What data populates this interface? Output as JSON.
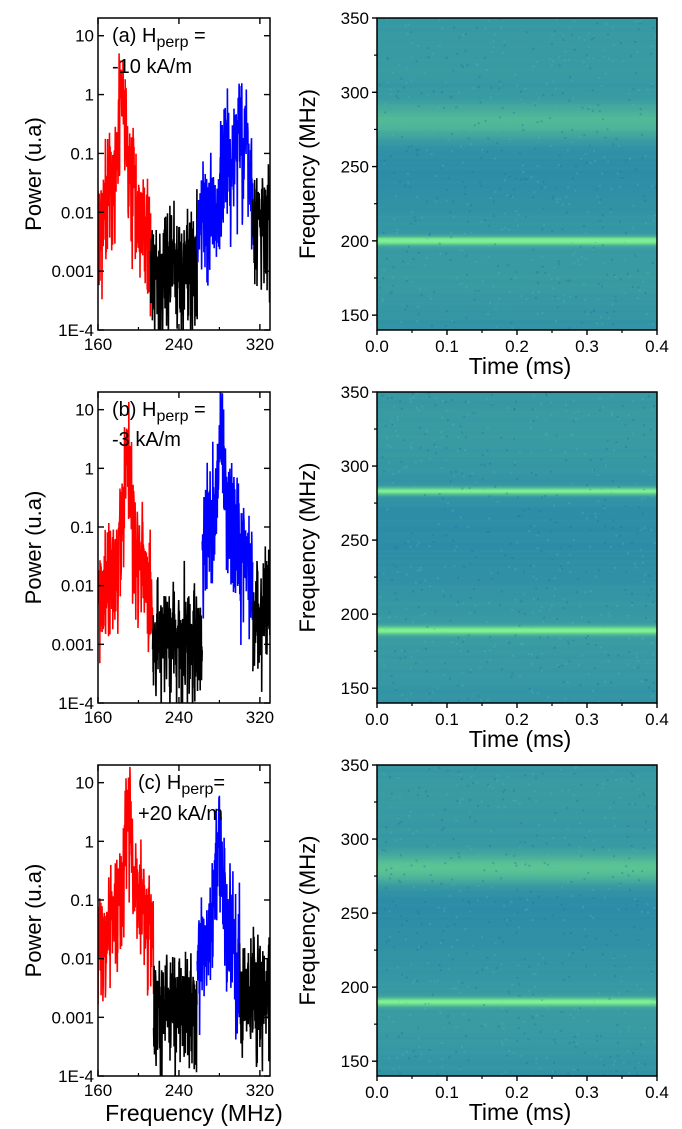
{
  "chart_data": [
    {
      "type": "line",
      "panel": "a",
      "annotation_line1": "(a) H",
      "annotation_sub": "perp",
      "annotation_eq": " =",
      "annotation_line2": "-10 kA/m",
      "ylabel": "Power (u.a)",
      "xlabel": "",
      "yscale": "log",
      "ylim": [
        0.0001,
        20
      ],
      "xlim": [
        160,
        330
      ],
      "xticks": [
        160,
        240,
        320
      ],
      "xtick_labels": [
        "160",
        "240",
        "320"
      ],
      "yticks": [
        10,
        1,
        0.1,
        0.01,
        0.001,
        0.0001
      ],
      "ytick_labels": [
        "10",
        "1",
        "0.1",
        "0.01",
        "0.001",
        "1E-4"
      ],
      "series": [
        {
          "color": "#ff0000",
          "peaks": [
            [
              184,
              1.5
            ]
          ],
          "range": [
            160,
            212
          ],
          "base": 0.0004,
          "spread": 2.0
        },
        {
          "color": "#000000",
          "peaks": [],
          "range": [
            212,
            258
          ],
          "base": 0.0015,
          "spread": 0.7
        },
        {
          "color": "#0000ff",
          "peaks": [
            [
              298,
              0.45
            ],
            [
              286,
              0.2
            ],
            [
              306,
              0.15
            ]
          ],
          "range": [
            258,
            313
          ],
          "base": 0.01,
          "spread": 14
        },
        {
          "color": "#000000",
          "peaks": [],
          "range": [
            313,
            330
          ],
          "base": 0.01,
          "spread": 0.8
        }
      ]
    },
    {
      "type": "heatmap",
      "panel": "a",
      "xlabel": "Time (ms)",
      "ylabel": "Frequency (MHz)",
      "xlim": [
        0.0,
        0.4
      ],
      "ylim": [
        140,
        350
      ],
      "xticks": [
        0.0,
        0.1,
        0.2,
        0.3,
        0.4
      ],
      "xtick_labels": [
        "0.0",
        "0.1",
        "0.2",
        "0.3",
        "0.4"
      ],
      "yticks": [
        150,
        200,
        250,
        300,
        350
      ],
      "ytick_labels": [
        "150",
        "200",
        "250",
        "300",
        "350"
      ],
      "lines": [
        {
          "freq": 200,
          "width": 2.5,
          "intensity": 0.95
        },
        {
          "freq": 280,
          "width": 12,
          "intensity": 0.35
        }
      ]
    },
    {
      "type": "line",
      "panel": "b",
      "annotation_line1": "(b) H",
      "annotation_sub": "perp",
      "annotation_eq": " =",
      "annotation_line2": "-3 kA/m",
      "ylabel": "Power (u.a)",
      "xlabel": "",
      "yscale": "log",
      "ylim": [
        0.0001,
        20
      ],
      "xlim": [
        160,
        330
      ],
      "xticks": [
        160,
        240,
        320
      ],
      "xtick_labels": [
        "160",
        "240",
        "320"
      ],
      "yticks": [
        10,
        1,
        0.1,
        0.01,
        0.001,
        0.0001
      ],
      "ytick_labels": [
        "10",
        "1",
        "0.1",
        "0.01",
        "0.001",
        "1E-4"
      ],
      "series": [
        {
          "color": "#ff0000",
          "peaks": [
            [
              189,
              2.0
            ]
          ],
          "range": [
            160,
            214
          ],
          "base": 0.0008,
          "spread": 2.0
        },
        {
          "color": "#000000",
          "peaks": [],
          "range": [
            214,
            263
          ],
          "base": 0.002,
          "spread": 0.8
        },
        {
          "color": "#0000ff",
          "peaks": [
            [
              282,
              6.0
            ]
          ],
          "range": [
            263,
            313
          ],
          "base": 0.005,
          "spread": 5
        },
        {
          "color": "#000000",
          "peaks": [],
          "range": [
            313,
            330
          ],
          "base": 0.006,
          "spread": 1.0
        }
      ]
    },
    {
      "type": "heatmap",
      "panel": "b",
      "xlabel": "Time (ms)",
      "ylabel": "Frequency (MHz)",
      "xlim": [
        0.0,
        0.4
      ],
      "ylim": [
        140,
        350
      ],
      "xticks": [
        0.0,
        0.1,
        0.2,
        0.3,
        0.4
      ],
      "xtick_labels": [
        "0.0",
        "0.1",
        "0.2",
        "0.3",
        "0.4"
      ],
      "yticks": [
        150,
        200,
        250,
        300,
        350
      ],
      "ytick_labels": [
        "150",
        "200",
        "250",
        "300",
        "350"
      ],
      "lines": [
        {
          "freq": 189,
          "width": 2.5,
          "intensity": 0.85
        },
        {
          "freq": 283,
          "width": 2.5,
          "intensity": 0.8
        }
      ]
    },
    {
      "type": "line",
      "panel": "c",
      "annotation_line1": "(c) H",
      "annotation_sub": "perp",
      "annotation_eq": "=",
      "annotation_line2": "+20 kA/m",
      "ylabel": "Power (u.a)",
      "xlabel": "Frequency (MHz)",
      "yscale": "log",
      "ylim": [
        0.0001,
        20
      ],
      "xlim": [
        160,
        330
      ],
      "xticks": [
        160,
        240,
        320
      ],
      "xtick_labels": [
        "160",
        "240",
        "320"
      ],
      "yticks": [
        10,
        1,
        0.1,
        0.01,
        0.001,
        0.0001
      ],
      "ytick_labels": [
        "10",
        "1",
        "0.1",
        "0.01",
        "0.001",
        "1E-4"
      ],
      "series": [
        {
          "color": "#ff0000",
          "peaks": [
            [
              190,
              6.0
            ]
          ],
          "range": [
            160,
            215
          ],
          "base": 0.001,
          "spread": 4
        },
        {
          "color": "#000000",
          "peaks": [],
          "range": [
            215,
            258
          ],
          "base": 0.002,
          "spread": 0.8
        },
        {
          "color": "#0000ff",
          "peaks": [
            [
              280,
              1.3
            ]
          ],
          "range": [
            258,
            300
          ],
          "base": 0.004,
          "spread": 6
        },
        {
          "color": "#000000",
          "peaks": [],
          "range": [
            300,
            330
          ],
          "base": 0.004,
          "spread": 1.2
        }
      ]
    },
    {
      "type": "heatmap",
      "panel": "c",
      "xlabel": "Time (ms)",
      "ylabel": "Frequency (MHz)",
      "xlim": [
        0.0,
        0.4
      ],
      "ylim": [
        140,
        350
      ],
      "xticks": [
        0.0,
        0.1,
        0.2,
        0.3,
        0.4
      ],
      "xtick_labels": [
        "0.0",
        "0.1",
        "0.2",
        "0.3",
        "0.4"
      ],
      "yticks": [
        150,
        200,
        250,
        300,
        350
      ],
      "ytick_labels": [
        "150",
        "200",
        "250",
        "300",
        "350"
      ],
      "lines": [
        {
          "freq": 190,
          "width": 2.5,
          "intensity": 0.85
        },
        {
          "freq": 280,
          "width": 10,
          "intensity": 0.45
        }
      ]
    }
  ],
  "colors": {
    "heatmap_bg": "#2a8aac",
    "heatmap_line": "#7cf0a0",
    "axis": "#000000"
  }
}
